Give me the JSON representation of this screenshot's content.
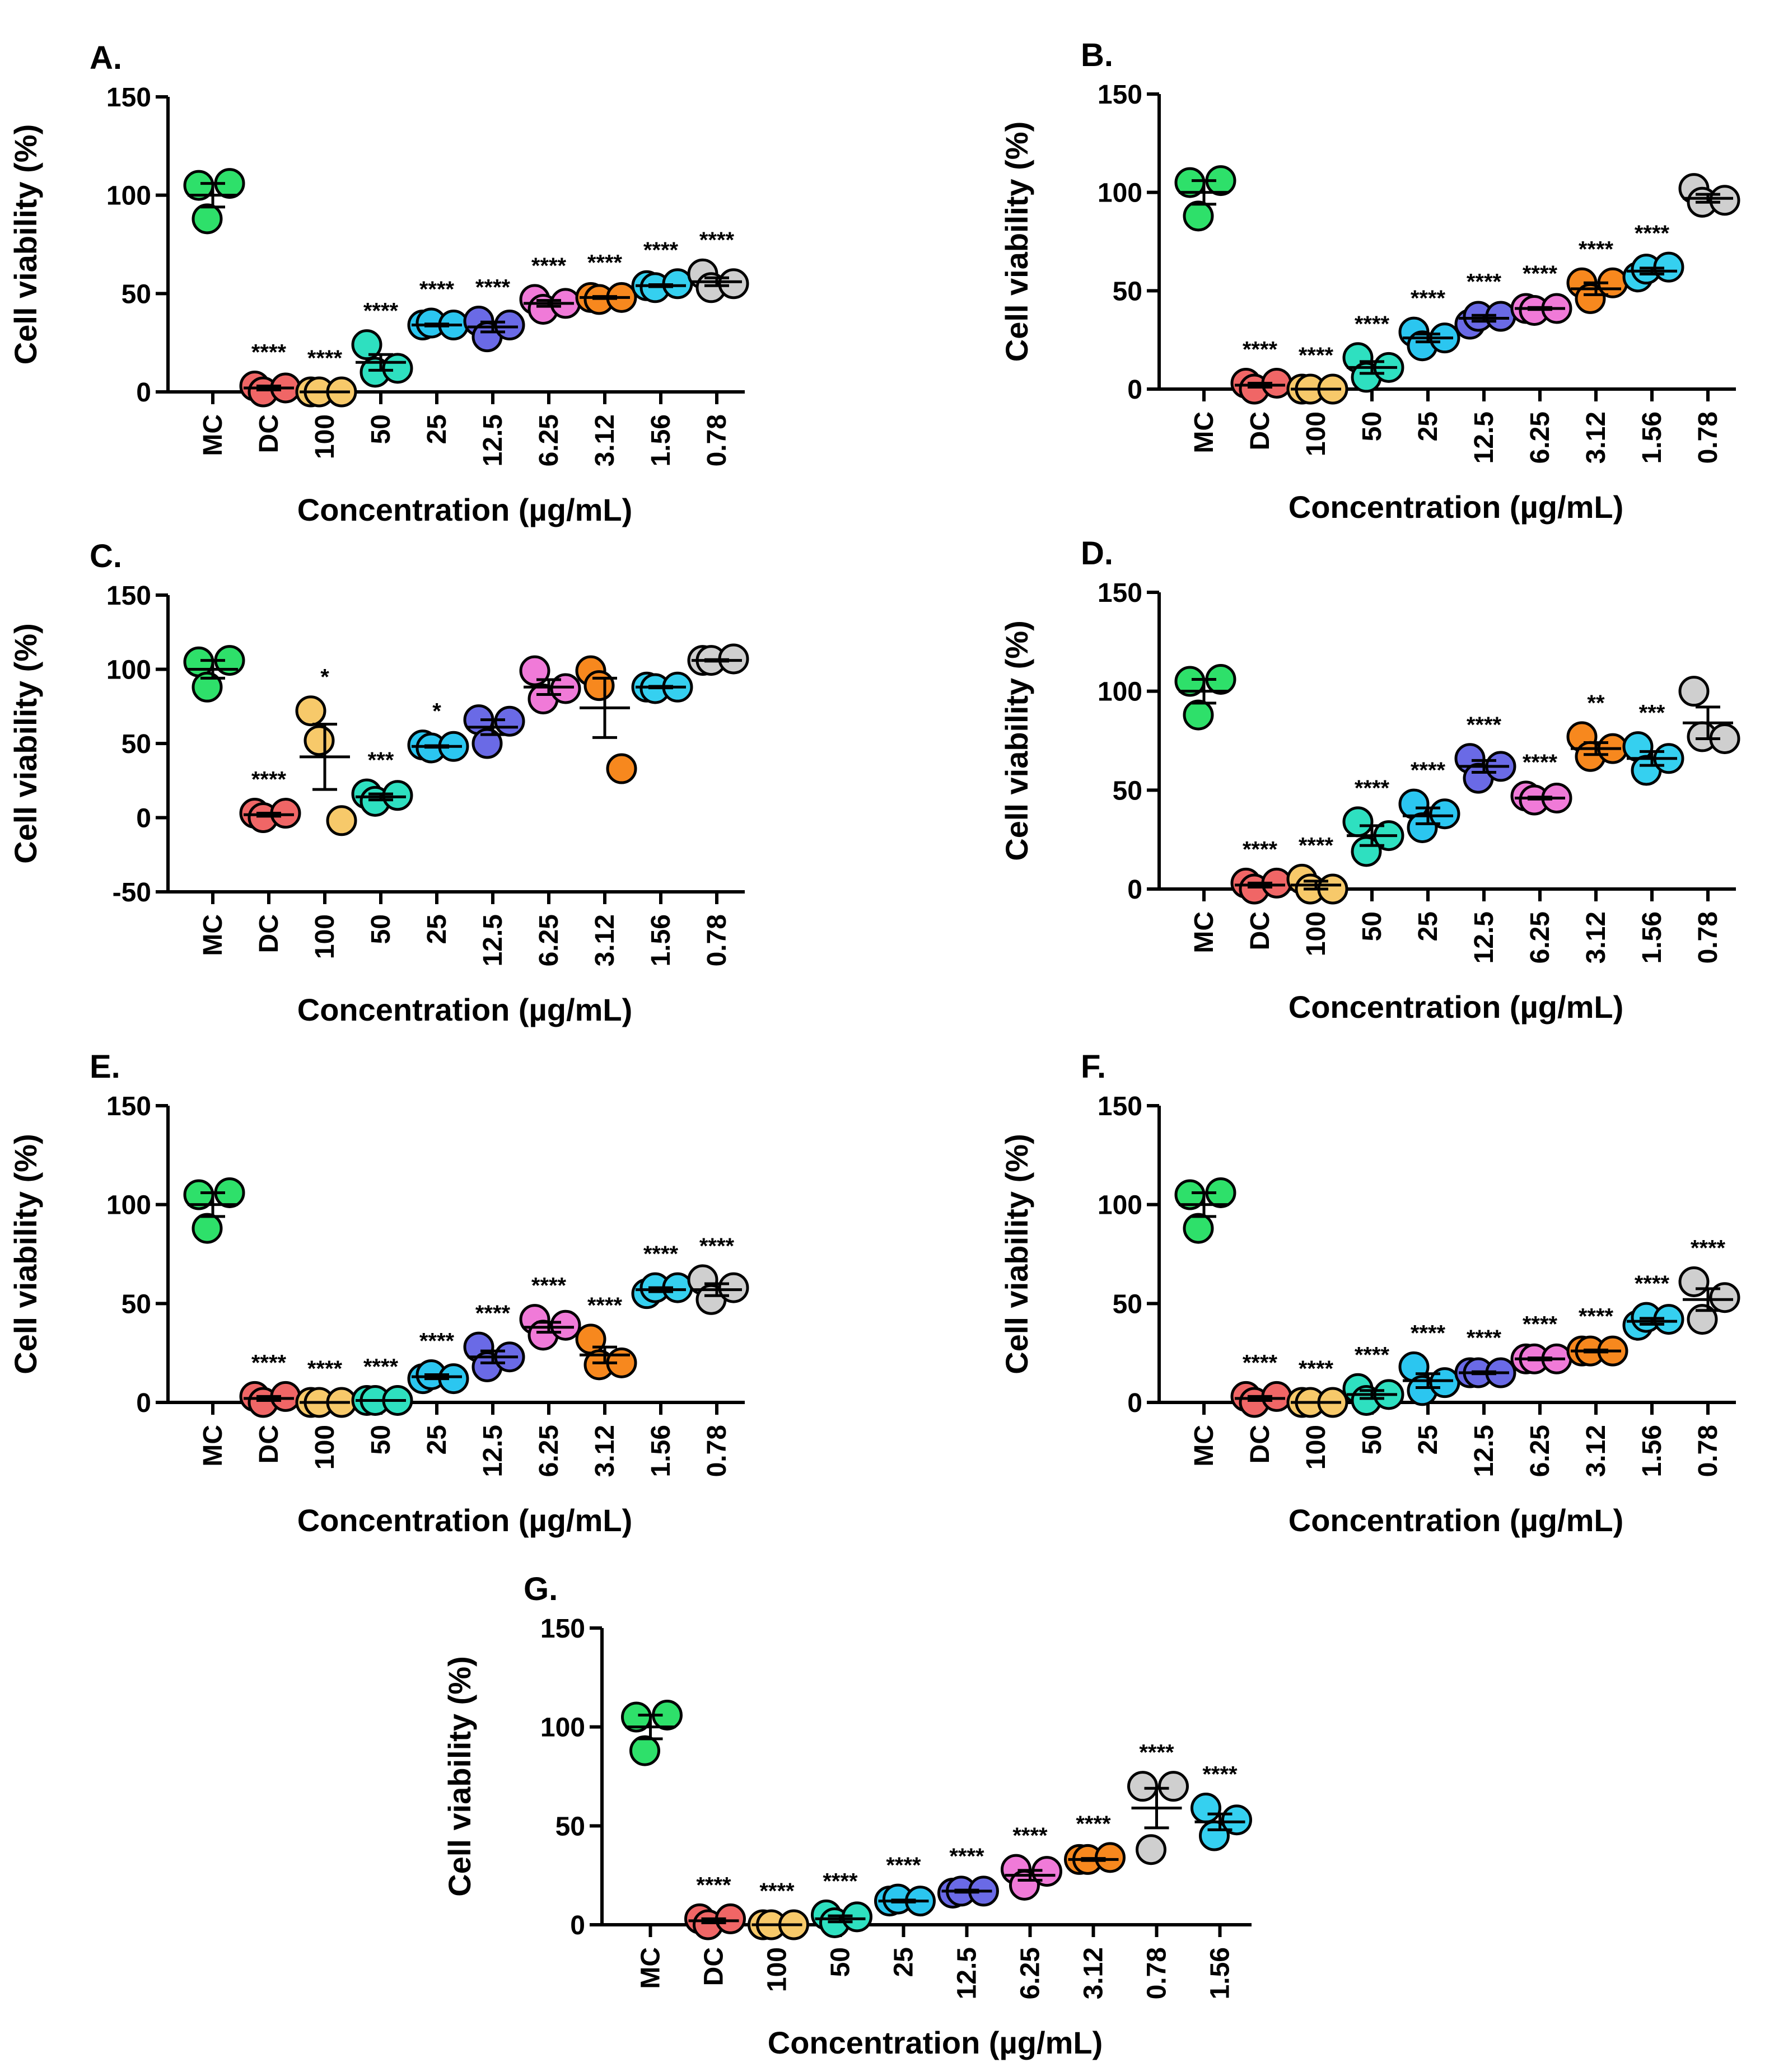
{
  "figure": {
    "ylabel": "Cell viability (%)",
    "xlabel": "Concentration (µg/mL)"
  },
  "group_colors": {
    "MC": "#2ee06a",
    "DC": "#f06666",
    "100": "#f7c96a",
    "50": "#2ee0c0",
    "25": "#2bc6f0",
    "12.5": "#6a6ae6",
    "6.25": "#f07ad8",
    "3.12": "#f7881e",
    "1.56": "#35d0f0",
    "0.78": "#cfcfcf"
  },
  "chart_data": [
    {
      "panel": "A.",
      "type": "scatter",
      "ylabel": "Cell viability (%)",
      "xlabel": "Concentration (µg/mL)",
      "ylim": [
        0,
        150
      ],
      "yticks": [
        0,
        50,
        100,
        150
      ],
      "categories": [
        "MC",
        "DC",
        "100",
        "50",
        "25",
        "12.5",
        "6.25",
        "3.12",
        "1.56",
        "0.78"
      ],
      "points": [
        [
          105,
          88,
          106
        ],
        [
          3,
          0,
          2
        ],
        [
          0,
          0,
          0
        ],
        [
          24,
          10,
          12
        ],
        [
          34,
          35,
          34
        ],
        [
          36,
          28,
          34
        ],
        [
          47,
          42,
          45
        ],
        [
          48,
          47,
          48
        ],
        [
          54,
          53,
          55
        ],
        [
          60,
          53,
          55
        ]
      ],
      "mean": [
        100,
        2,
        0,
        15,
        34,
        33,
        45,
        48,
        54,
        56
      ],
      "sem": [
        6,
        1,
        0,
        4,
        0.5,
        2.5,
        1.5,
        0.5,
        0.5,
        2
      ],
      "significance": [
        "",
        "****",
        "****",
        "****",
        "****",
        "****",
        "****",
        "****",
        "****",
        "****"
      ]
    },
    {
      "panel": "B.",
      "type": "scatter",
      "ylabel": "Cell viability (%)",
      "xlabel": "Concentration (µg/mL)",
      "ylim": [
        0,
        150
      ],
      "yticks": [
        0,
        50,
        100,
        150
      ],
      "categories": [
        "MC",
        "DC",
        "100",
        "50",
        "25",
        "12.5",
        "6.25",
        "3.12",
        "1.56",
        "0.78"
      ],
      "points": [
        [
          105,
          88,
          106
        ],
        [
          3,
          0,
          3
        ],
        [
          0,
          0,
          0
        ],
        [
          16,
          6,
          11
        ],
        [
          29,
          22,
          26
        ],
        [
          33,
          37,
          37
        ],
        [
          41,
          40,
          41
        ],
        [
          54,
          46,
          54
        ],
        [
          57,
          61,
          62
        ],
        [
          102,
          95,
          96
        ]
      ],
      "mean": [
        100,
        2,
        0,
        11,
        26,
        36,
        41,
        51,
        60,
        97
      ],
      "sem": [
        6,
        1,
        0,
        3,
        2,
        1.5,
        0.5,
        3,
        1.5,
        2
      ],
      "significance": [
        "",
        "****",
        "****",
        "****",
        "****",
        "****",
        "****",
        "****",
        "****",
        ""
      ]
    },
    {
      "panel": "C.",
      "type": "scatter",
      "ylabel": "Cell viability (%)",
      "xlabel": "Concentration (µg/mL)",
      "ylim": [
        -50,
        150
      ],
      "yticks": [
        -50,
        0,
        50,
        100,
        150
      ],
      "categories": [
        "MC",
        "DC",
        "100",
        "50",
        "25",
        "12.5",
        "6.25",
        "3.12",
        "1.56",
        "0.78"
      ],
      "points": [
        [
          105,
          88,
          106
        ],
        [
          3,
          0,
          3
        ],
        [
          72,
          52,
          -2
        ],
        [
          16,
          11,
          15
        ],
        [
          49,
          47,
          48
        ],
        [
          66,
          50,
          65
        ],
        [
          99,
          80,
          87
        ],
        [
          99,
          89,
          33
        ],
        [
          88,
          87,
          88
        ],
        [
          106,
          106,
          107
        ]
      ],
      "mean": [
        100,
        2,
        41,
        14,
        48,
        61,
        88,
        74,
        88,
        106
      ],
      "sem": [
        6,
        1,
        22,
        2,
        0.5,
        5,
        5,
        20,
        0.5,
        0.5
      ],
      "significance": [
        "",
        "****",
        "*",
        "***",
        "*",
        "",
        "",
        "",
        "",
        ""
      ]
    },
    {
      "panel": "D.",
      "type": "scatter",
      "ylabel": "Cell viability (%)",
      "xlabel": "Concentration (µg/mL)",
      "ylim": [
        0,
        150
      ],
      "yticks": [
        0,
        50,
        100,
        150
      ],
      "categories": [
        "MC",
        "DC",
        "100",
        "50",
        "25",
        "12.5",
        "6.25",
        "3.12",
        "1.56",
        "0.78"
      ],
      "points": [
        [
          105,
          88,
          106
        ],
        [
          3,
          0,
          3
        ],
        [
          5,
          0,
          0
        ],
        [
          34,
          19,
          27
        ],
        [
          43,
          31,
          38
        ],
        [
          66,
          56,
          62
        ],
        [
          47,
          45,
          46
        ],
        [
          77,
          67,
          71
        ],
        [
          72,
          60,
          66
        ],
        [
          100,
          77,
          76
        ]
      ],
      "mean": [
        100,
        2,
        2,
        27,
        37,
        62,
        46,
        71,
        66,
        84
      ],
      "sem": [
        6,
        1,
        2,
        5,
        4,
        3,
        0.5,
        3,
        3.5,
        8
      ],
      "significance": [
        "",
        "****",
        "****",
        "****",
        "****",
        "****",
        "****",
        "**",
        "***",
        ""
      ]
    },
    {
      "panel": "E.",
      "type": "scatter",
      "ylabel": "Cell viability (%)",
      "xlabel": "Concentration (µg/mL)",
      "ylim": [
        0,
        150
      ],
      "yticks": [
        0,
        50,
        100,
        150
      ],
      "categories": [
        "MC",
        "DC",
        "100",
        "50",
        "25",
        "12.5",
        "6.25",
        "3.12",
        "1.56",
        "0.78"
      ],
      "points": [
        [
          105,
          88,
          106
        ],
        [
          3,
          0,
          3
        ],
        [
          0,
          0,
          0
        ],
        [
          1,
          1,
          1
        ],
        [
          12,
          14,
          12
        ],
        [
          28,
          18,
          23
        ],
        [
          42,
          34,
          39
        ],
        [
          32,
          19,
          20
        ],
        [
          55,
          58,
          58
        ],
        [
          62,
          52,
          58
        ]
      ],
      "mean": [
        100,
        2,
        0,
        1,
        13,
        23,
        38,
        24,
        57,
        57
      ],
      "sem": [
        6,
        1,
        0,
        0,
        1,
        3,
        2.5,
        4,
        1,
        3
      ],
      "significance": [
        "",
        "****",
        "****",
        "****",
        "****",
        "****",
        "****",
        "****",
        "****",
        "****"
      ]
    },
    {
      "panel": "F.",
      "type": "scatter",
      "ylabel": "Cell viability (%)",
      "xlabel": "Concentration (µg/mL)",
      "ylim": [
        0,
        150
      ],
      "yticks": [
        0,
        50,
        100,
        150
      ],
      "categories": [
        "MC",
        "DC",
        "100",
        "50",
        "25",
        "12.5",
        "6.25",
        "3.12",
        "1.56",
        "0.78"
      ],
      "points": [
        [
          105,
          88,
          106
        ],
        [
          3,
          0,
          3
        ],
        [
          0,
          0,
          0
        ],
        [
          7,
          1,
          4
        ],
        [
          18,
          6,
          10
        ],
        [
          15,
          15,
          15
        ],
        [
          22,
          22,
          22
        ],
        [
          26,
          26,
          26
        ],
        [
          39,
          43,
          42
        ],
        [
          61,
          42,
          53
        ]
      ],
      "mean": [
        100,
        2,
        0,
        4,
        11,
        15,
        22,
        26,
        41,
        52
      ],
      "sem": [
        6,
        1,
        0,
        2,
        3.5,
        0.5,
        0.5,
        0.5,
        1.5,
        5.5
      ],
      "significance": [
        "",
        "****",
        "****",
        "****",
        "****",
        "****",
        "****",
        "****",
        "****",
        "****"
      ]
    },
    {
      "panel": "G.",
      "type": "scatter",
      "ylabel": "Cell viability (%)",
      "xlabel": "Concentration (µg/mL)",
      "ylim": [
        0,
        150
      ],
      "yticks": [
        0,
        50,
        100,
        150
      ],
      "categories": [
        "MC",
        "DC",
        "100",
        "50",
        "25",
        "12.5",
        "6.25",
        "3.12",
        "0.78",
        "1.56"
      ],
      "points": [
        [
          105,
          88,
          106
        ],
        [
          3,
          0,
          3
        ],
        [
          0,
          0,
          0
        ],
        [
          5,
          1,
          4
        ],
        [
          12,
          13,
          12
        ],
        [
          16,
          17,
          17
        ],
        [
          28,
          20,
          27
        ],
        [
          33,
          33,
          34
        ],
        [
          70,
          38,
          70
        ],
        [
          59,
          45,
          53
        ]
      ],
      "mean": [
        100,
        2,
        0,
        3,
        12,
        17,
        25,
        33,
        59,
        52
      ],
      "sem": [
        6,
        1,
        0,
        1.5,
        0.5,
        0.5,
        2.5,
        0.5,
        10,
        4
      ],
      "significance": [
        "",
        "****",
        "****",
        "****",
        "****",
        "****",
        "****",
        "****",
        "****",
        "****"
      ]
    }
  ]
}
